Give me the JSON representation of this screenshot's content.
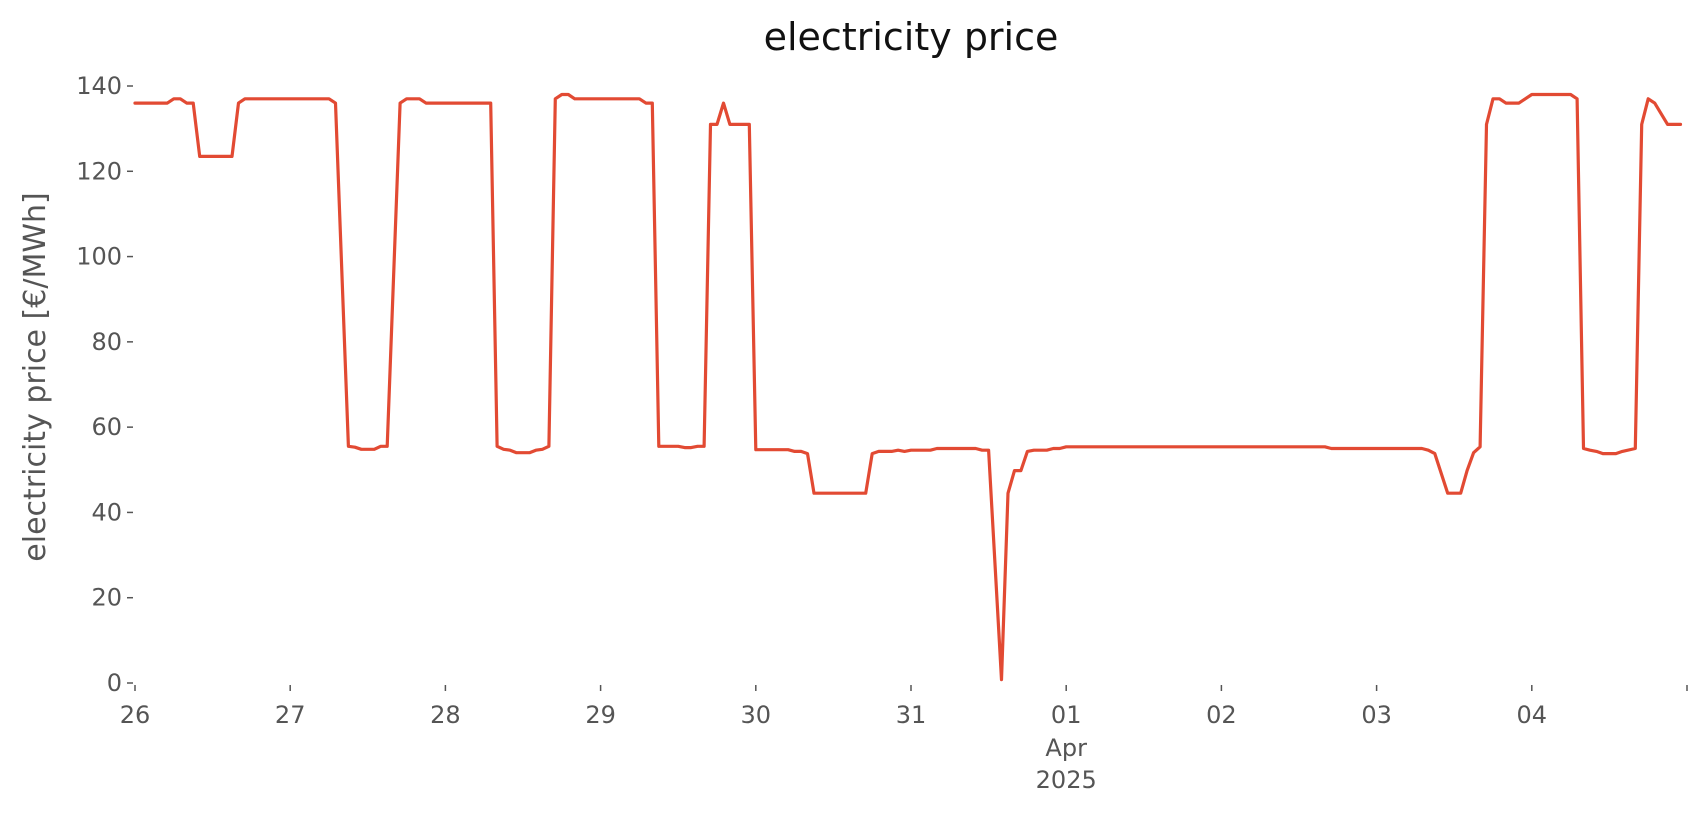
{
  "chart_data": {
    "type": "line",
    "title": "electricity price",
    "xlabel": "",
    "ylabel": "electricity price [€/MWh]",
    "ylim": [
      0,
      140
    ],
    "yticks": [
      0,
      20,
      40,
      60,
      80,
      100,
      120,
      140
    ],
    "xlim": [
      "2025-03-26 00:00",
      "2025-04-04 23:00"
    ],
    "x_tick_labels": [
      {
        "date": "2025-03-26",
        "label": "26"
      },
      {
        "date": "2025-03-27",
        "label": "27"
      },
      {
        "date": "2025-03-28",
        "label": "28"
      },
      {
        "date": "2025-03-29",
        "label": "29"
      },
      {
        "date": "2025-03-30",
        "label": "30"
      },
      {
        "date": "2025-03-31",
        "label": "31"
      },
      {
        "date": "2025-04-01",
        "label": "01",
        "month": "Apr",
        "year": "2025"
      },
      {
        "date": "2025-04-02",
        "label": "02"
      },
      {
        "date": "2025-04-03",
        "label": "03"
      },
      {
        "date": "2025-04-04",
        "label": "04"
      }
    ],
    "grid": false,
    "colors": {
      "line": "#E24A33",
      "text": "#555555",
      "title": "#111111"
    },
    "series": [
      {
        "points": [
          [
            "2025-03-26 00:00",
            136
          ],
          [
            "2025-03-26 05:00",
            136
          ],
          [
            "2025-03-26 06:00",
            137
          ],
          [
            "2025-03-26 07:00",
            137
          ],
          [
            "2025-03-26 08:00",
            136
          ],
          [
            "2025-03-26 09:00",
            136
          ],
          [
            "2025-03-26 10:00",
            123.5
          ],
          [
            "2025-03-26 15:00",
            123.5
          ],
          [
            "2025-03-26 16:00",
            136
          ],
          [
            "2025-03-26 17:00",
            137
          ],
          [
            "2025-03-27 06:00",
            137
          ],
          [
            "2025-03-27 07:00",
            136
          ],
          [
            "2025-03-27 09:00",
            55.5
          ],
          [
            "2025-03-27 10:00",
            55.3
          ],
          [
            "2025-03-27 11:00",
            54.8
          ],
          [
            "2025-03-27 13:00",
            54.8
          ],
          [
            "2025-03-27 14:00",
            55.5
          ],
          [
            "2025-03-27 15:00",
            55.5
          ],
          [
            "2025-03-27 17:00",
            136
          ],
          [
            "2025-03-27 18:00",
            137
          ],
          [
            "2025-03-27 20:00",
            137
          ],
          [
            "2025-03-27 21:00",
            136
          ],
          [
            "2025-03-28 07:00",
            136
          ],
          [
            "2025-03-28 08:00",
            55.5
          ],
          [
            "2025-03-28 09:00",
            54.8
          ],
          [
            "2025-03-28 10:00",
            54.6
          ],
          [
            "2025-03-28 11:00",
            54
          ],
          [
            "2025-03-28 13:00",
            54
          ],
          [
            "2025-03-28 14:00",
            54.6
          ],
          [
            "2025-03-28 15:00",
            54.8
          ],
          [
            "2025-03-28 16:00",
            55.5
          ],
          [
            "2025-03-28 17:00",
            137
          ],
          [
            "2025-03-28 18:00",
            138
          ],
          [
            "2025-03-28 19:00",
            138
          ],
          [
            "2025-03-28 20:00",
            137
          ],
          [
            "2025-03-29 06:00",
            137
          ],
          [
            "2025-03-29 07:00",
            136
          ],
          [
            "2025-03-29 08:00",
            136
          ],
          [
            "2025-03-29 09:00",
            55.5
          ],
          [
            "2025-03-29 12:00",
            55.5
          ],
          [
            "2025-03-29 13:00",
            55.2
          ],
          [
            "2025-03-29 14:00",
            55.2
          ],
          [
            "2025-03-29 15:00",
            55.5
          ],
          [
            "2025-03-29 16:00",
            55.5
          ],
          [
            "2025-03-29 17:00",
            131
          ],
          [
            "2025-03-29 18:00",
            131
          ],
          [
            "2025-03-29 19:00",
            136
          ],
          [
            "2025-03-29 20:00",
            131
          ],
          [
            "2025-03-29 23:00",
            131
          ],
          [
            "2025-03-30 00:00",
            54.7
          ],
          [
            "2025-03-30 05:00",
            54.7
          ],
          [
            "2025-03-30 06:00",
            54.3
          ],
          [
            "2025-03-30 07:00",
            54.3
          ],
          [
            "2025-03-30 08:00",
            53.8
          ],
          [
            "2025-03-30 09:00",
            44.5
          ],
          [
            "2025-03-30 17:00",
            44.5
          ],
          [
            "2025-03-30 18:00",
            53.8
          ],
          [
            "2025-03-30 19:00",
            54.3
          ],
          [
            "2025-03-30 21:00",
            54.3
          ],
          [
            "2025-03-30 22:00",
            54.6
          ],
          [
            "2025-03-30 23:00",
            54.3
          ],
          [
            "2025-03-31 00:00",
            54.6
          ],
          [
            "2025-03-31 03:00",
            54.6
          ],
          [
            "2025-03-31 04:00",
            55
          ],
          [
            "2025-03-31 10:00",
            55
          ],
          [
            "2025-03-31 11:00",
            54.6
          ],
          [
            "2025-03-31 12:00",
            54.6
          ],
          [
            "2025-03-31 14:00",
            0.8
          ],
          [
            "2025-03-31 15:00",
            44.5
          ],
          [
            "2025-03-31 16:00",
            49.8
          ],
          [
            "2025-03-31 17:00",
            49.8
          ],
          [
            "2025-03-31 18:00",
            54.3
          ],
          [
            "2025-03-31 19:00",
            54.6
          ],
          [
            "2025-03-31 21:00",
            54.6
          ],
          [
            "2025-03-31 22:00",
            55
          ],
          [
            "2025-03-31 23:00",
            55
          ],
          [
            "2025-04-01 00:00",
            55.4
          ],
          [
            "2025-04-02 16:00",
            55.4
          ],
          [
            "2025-04-02 17:00",
            55
          ],
          [
            "2025-04-03 07:00",
            55
          ],
          [
            "2025-04-03 08:00",
            54.6
          ],
          [
            "2025-04-03 09:00",
            53.8
          ],
          [
            "2025-04-03 11:00",
            44.5
          ],
          [
            "2025-04-03 13:00",
            44.5
          ],
          [
            "2025-04-03 14:00",
            49.8
          ],
          [
            "2025-04-03 15:00",
            54
          ],
          [
            "2025-04-03 16:00",
            55.4
          ],
          [
            "2025-04-03 17:00",
            131
          ],
          [
            "2025-04-03 18:00",
            137
          ],
          [
            "2025-04-03 19:00",
            137
          ],
          [
            "2025-04-03 20:00",
            136
          ],
          [
            "2025-04-03 22:00",
            136
          ],
          [
            "2025-04-03 23:00",
            137
          ],
          [
            "2025-04-04 00:00",
            138
          ],
          [
            "2025-04-04 06:00",
            138
          ],
          [
            "2025-04-04 07:00",
            137
          ],
          [
            "2025-04-04 08:00",
            55
          ],
          [
            "2025-04-04 09:00",
            54.6
          ],
          [
            "2025-04-04 10:00",
            54.3
          ],
          [
            "2025-04-04 11:00",
            53.8
          ],
          [
            "2025-04-04 13:00",
            53.8
          ],
          [
            "2025-04-04 14:00",
            54.3
          ],
          [
            "2025-04-04 16:00",
            55
          ],
          [
            "2025-04-04 17:00",
            131
          ],
          [
            "2025-04-04 18:00",
            137
          ],
          [
            "2025-04-04 19:00",
            136
          ],
          [
            "2025-04-04 21:00",
            131
          ],
          [
            "2025-04-04 23:00",
            131
          ]
        ]
      }
    ]
  }
}
